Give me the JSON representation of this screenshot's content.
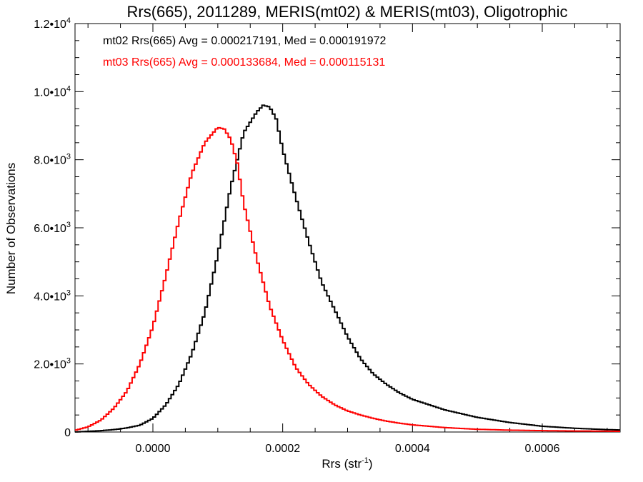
{
  "chart_data": {
    "type": "line",
    "title": "Rrs(665), 2011289, MERIS(mt02) & MERIS(mt03), Oligotrophic",
    "xlabel": {
      "base": "Rrs (str",
      "sup": "-1",
      "tail": ")"
    },
    "ylabel": "Number of Observations",
    "xlim": [
      -0.00012,
      0.00072
    ],
    "ylim": [
      0,
      12000
    ],
    "x_ticks": [
      {
        "value": 0.0,
        "label": "0.0000"
      },
      {
        "value": 0.0002,
        "label": "0.0002"
      },
      {
        "value": 0.0004,
        "label": "0.0004"
      },
      {
        "value": 0.0006,
        "label": "0.0006"
      }
    ],
    "x_minor_step": 5e-05,
    "y_ticks": [
      {
        "value": 0,
        "mant": "0",
        "exp": ""
      },
      {
        "value": 2000,
        "mant": "2.0•10",
        "exp": "3"
      },
      {
        "value": 4000,
        "mant": "4.0•10",
        "exp": "3"
      },
      {
        "value": 6000,
        "mant": "6.0•10",
        "exp": "3"
      },
      {
        "value": 8000,
        "mant": "8.0•10",
        "exp": "3"
      },
      {
        "value": 10000,
        "mant": "1.0•10",
        "exp": "4"
      },
      {
        "value": 12000,
        "mant": "1.2•10",
        "exp": "4"
      }
    ],
    "y_minor_step": 500,
    "grid": false,
    "legend_position": "top-left",
    "series": [
      {
        "name": "mt02",
        "label": "mt02 Rrs(665) Avg = 0.000217191, Med = 0.000191972",
        "color": "#000000",
        "x": [
          -0.00012,
          -0.0001,
          -8e-05,
          -6e-05,
          -4e-05,
          -2e-05,
          0.0,
          2e-05,
          4e-05,
          6e-05,
          8e-05,
          0.0001,
          0.00012,
          0.00014,
          0.00016,
          0.00017,
          0.00018,
          0.00019,
          0.0002,
          0.00022,
          0.00024,
          0.00026,
          0.00028,
          0.0003,
          0.00032,
          0.00034,
          0.00036,
          0.00038,
          0.0004,
          0.00045,
          0.0005,
          0.00055,
          0.0006,
          0.00065,
          0.0007,
          0.00072
        ],
        "y": [
          0,
          20,
          40,
          70,
          120,
          200,
          400,
          800,
          1400,
          2300,
          3500,
          5200,
          7200,
          8800,
          9400,
          9600,
          9550,
          9200,
          8300,
          6900,
          5600,
          4400,
          3600,
          2800,
          2150,
          1700,
          1400,
          1150,
          960,
          650,
          430,
          280,
          170,
          110,
          70,
          60
        ]
      },
      {
        "name": "mt03",
        "label": "mt03 Rrs(665) Avg = 0.000133684, Med = 0.000115131",
        "color": "#ff0000",
        "x": [
          -0.00012,
          -0.0001,
          -8e-05,
          -6e-05,
          -4e-05,
          -2e-05,
          0.0,
          2e-05,
          4e-05,
          6e-05,
          8e-05,
          0.0001,
          0.00011,
          0.00012,
          0.00013,
          0.00014,
          0.00016,
          0.00018,
          0.0002,
          0.00022,
          0.00024,
          0.00026,
          0.00028,
          0.0003,
          0.00032,
          0.00034,
          0.00036,
          0.00038,
          0.0004,
          0.00045,
          0.0005,
          0.00055,
          0.0006,
          0.00065,
          0.0007,
          0.00072
        ],
        "y": [
          50,
          150,
          350,
          700,
          1200,
          2000,
          3100,
          4600,
          6200,
          7600,
          8500,
          8950,
          8900,
          8600,
          7900,
          6700,
          5100,
          3700,
          2700,
          1900,
          1400,
          1050,
          800,
          620,
          500,
          400,
          320,
          260,
          210,
          130,
          80,
          55,
          40,
          30,
          25,
          20
        ]
      }
    ]
  }
}
